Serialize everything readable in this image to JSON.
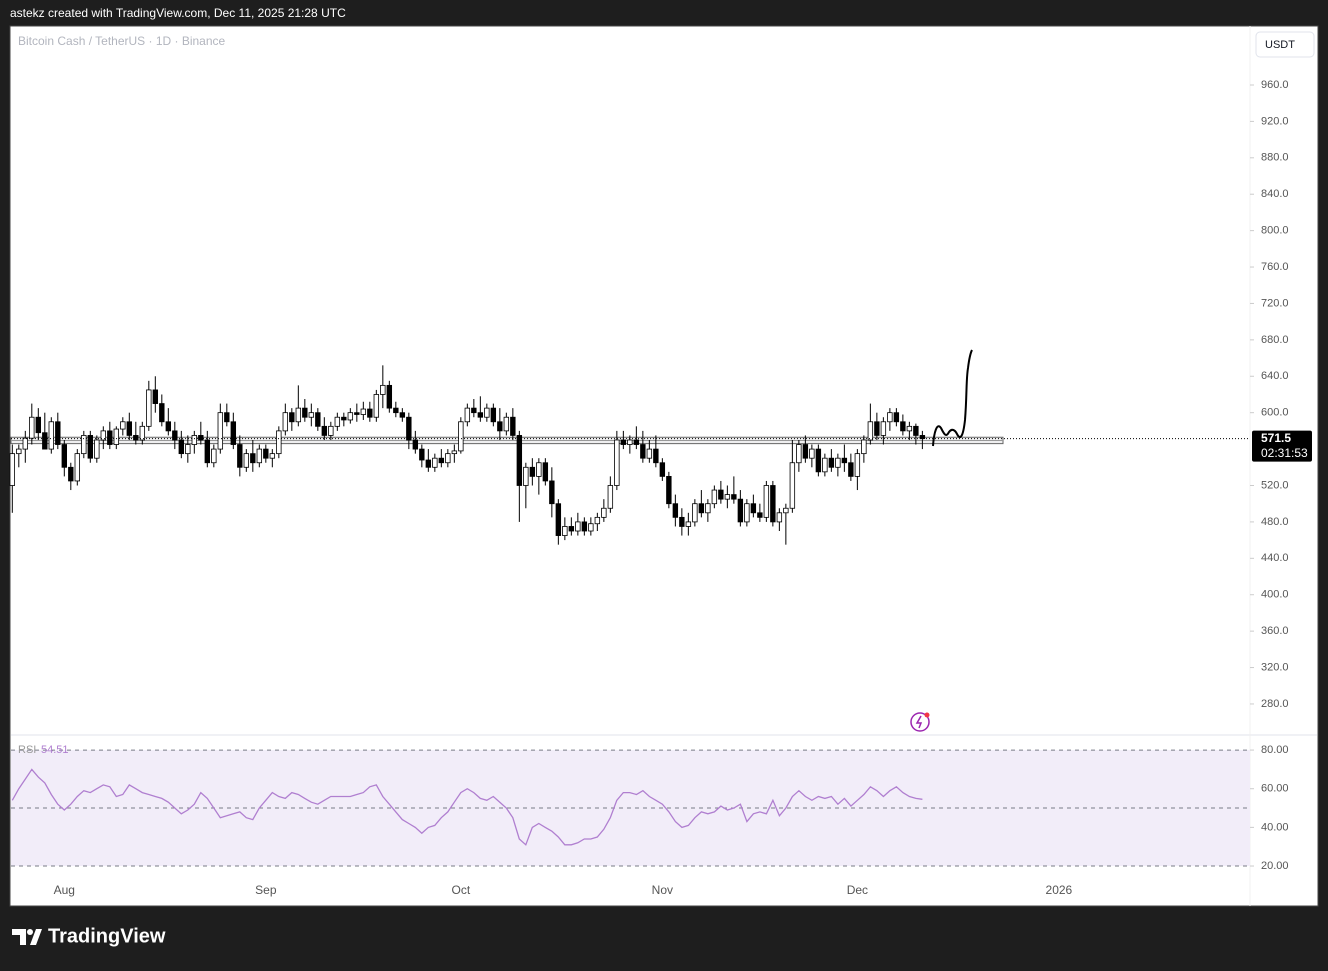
{
  "header": "astekz created with TradingView.com, Dec 11, 2025 21:28 UTC",
  "footer": {
    "brand": "TradingView"
  },
  "chart_data": {
    "type": "candlestick",
    "title": "Bitcoin Cash / TetherUS · 1D · Binance",
    "currency": "USDT",
    "countdown": "02:31:53",
    "up_color": "#ffffff",
    "down_color": "#000000",
    "wick_color": "#000000",
    "xlim": [
      -0.2,
      190.4
    ],
    "ylim": [
      245.9,
      1024.8
    ],
    "xticks": [
      {
        "value": 8,
        "label": "Aug"
      },
      {
        "value": 39,
        "label": "Sep"
      },
      {
        "value": 69,
        "label": "Oct"
      },
      {
        "value": 100,
        "label": "Nov"
      },
      {
        "value": 130,
        "label": "Dec"
      },
      {
        "value": 161,
        "label": "2026"
      }
    ],
    "yticks": [
      {
        "value": 960,
        "label": "960.0"
      },
      {
        "value": 920,
        "label": "920.0"
      },
      {
        "value": 880,
        "label": "880.0"
      },
      {
        "value": 840,
        "label": "840.0"
      },
      {
        "value": 800,
        "label": "800.0"
      },
      {
        "value": 760,
        "label": "760.0"
      },
      {
        "value": 720,
        "label": "720.0"
      },
      {
        "value": 680,
        "label": "680.0"
      },
      {
        "value": 640,
        "label": "640.0"
      },
      {
        "value": 600,
        "label": "600.0"
      },
      {
        "value": 520,
        "label": "520.0"
      },
      {
        "value": 480,
        "label": "480.0"
      },
      {
        "value": 440,
        "label": "440.0"
      },
      {
        "value": 400,
        "label": "400.0"
      },
      {
        "value": 360,
        "label": "360.0"
      },
      {
        "value": 320,
        "label": "320.0"
      },
      {
        "value": 280,
        "label": "280.0"
      }
    ],
    "support_zone": [
      566,
      573
    ],
    "ohlc": [
      [
        520,
        565,
        490,
        555
      ],
      [
        555,
        565,
        540,
        560
      ],
      [
        560,
        580,
        545,
        572
      ],
      [
        572,
        610,
        565,
        595
      ],
      [
        595,
        605,
        570,
        578
      ],
      [
        578,
        600,
        560,
        560
      ],
      [
        560,
        595,
        555,
        590
      ],
      [
        590,
        600,
        560,
        565
      ],
      [
        565,
        570,
        530,
        540
      ],
      [
        540,
        545,
        515,
        525
      ],
      [
        525,
        560,
        520,
        555
      ],
      [
        555,
        580,
        550,
        575
      ],
      [
        575,
        580,
        545,
        550
      ],
      [
        550,
        575,
        545,
        570
      ],
      [
        570,
        585,
        560,
        580
      ],
      [
        580,
        590,
        560,
        565
      ],
      [
        565,
        585,
        560,
        582
      ],
      [
        582,
        595,
        575,
        590
      ],
      [
        590,
        600,
        570,
        575
      ],
      [
        575,
        590,
        565,
        570
      ],
      [
        570,
        590,
        565,
        585
      ],
      [
        585,
        635,
        580,
        625
      ],
      [
        625,
        640,
        600,
        610
      ],
      [
        610,
        620,
        585,
        590
      ],
      [
        590,
        605,
        575,
        580
      ],
      [
        580,
        590,
        560,
        570
      ],
      [
        570,
        580,
        550,
        555
      ],
      [
        555,
        575,
        545,
        565
      ],
      [
        565,
        580,
        555,
        575
      ],
      [
        575,
        590,
        565,
        570
      ],
      [
        570,
        580,
        540,
        545
      ],
      [
        545,
        565,
        540,
        560
      ],
      [
        560,
        610,
        555,
        600
      ],
      [
        600,
        610,
        585,
        590
      ],
      [
        590,
        600,
        560,
        565
      ],
      [
        565,
        575,
        530,
        540
      ],
      [
        540,
        560,
        535,
        555
      ],
      [
        555,
        570,
        535,
        545
      ],
      [
        545,
        565,
        540,
        560
      ],
      [
        560,
        565,
        545,
        550
      ],
      [
        550,
        560,
        540,
        555
      ],
      [
        555,
        585,
        550,
        580
      ],
      [
        580,
        610,
        575,
        600
      ],
      [
        600,
        605,
        580,
        590
      ],
      [
        590,
        630,
        585,
        605
      ],
      [
        605,
        615,
        590,
        595
      ],
      [
        595,
        610,
        585,
        600
      ],
      [
        600,
        605,
        580,
        585
      ],
      [
        585,
        595,
        570,
        575
      ],
      [
        575,
        590,
        570,
        585
      ],
      [
        585,
        600,
        580,
        595
      ],
      [
        595,
        600,
        585,
        592
      ],
      [
        592,
        605,
        588,
        600
      ],
      [
        600,
        610,
        590,
        598
      ],
      [
        598,
        612,
        592,
        604
      ],
      [
        604,
        612,
        590,
        595
      ],
      [
        595,
        625,
        590,
        620
      ],
      [
        620,
        652,
        605,
        630
      ],
      [
        630,
        635,
        600,
        605
      ],
      [
        605,
        612,
        595,
        600
      ],
      [
        600,
        605,
        590,
        595
      ],
      [
        595,
        600,
        560,
        570
      ],
      [
        570,
        580,
        555,
        560
      ],
      [
        560,
        565,
        540,
        548
      ],
      [
        548,
        560,
        535,
        540
      ],
      [
        540,
        555,
        535,
        550
      ],
      [
        550,
        560,
        540,
        545
      ],
      [
        545,
        560,
        540,
        555
      ],
      [
        555,
        565,
        545,
        558
      ],
      [
        558,
        595,
        555,
        590
      ],
      [
        590,
        610,
        585,
        605
      ],
      [
        605,
        615,
        595,
        600
      ],
      [
        600,
        618,
        590,
        595
      ],
      [
        595,
        610,
        590,
        605
      ],
      [
        605,
        610,
        585,
        590
      ],
      [
        590,
        605,
        570,
        580
      ],
      [
        580,
        600,
        575,
        595
      ],
      [
        595,
        605,
        570,
        575
      ],
      [
        575,
        580,
        480,
        520
      ],
      [
        520,
        545,
        495,
        540
      ],
      [
        540,
        550,
        520,
        530
      ],
      [
        530,
        550,
        510,
        545
      ],
      [
        545,
        550,
        520,
        525
      ],
      [
        525,
        540,
        485,
        500
      ],
      [
        500,
        505,
        455,
        465
      ],
      [
        465,
        485,
        460,
        475
      ],
      [
        475,
        485,
        465,
        470
      ],
      [
        470,
        490,
        465,
        480
      ],
      [
        480,
        485,
        465,
        470
      ],
      [
        470,
        485,
        465,
        478
      ],
      [
        478,
        490,
        470,
        485
      ],
      [
        485,
        505,
        480,
        495
      ],
      [
        495,
        530,
        490,
        520
      ],
      [
        520,
        580,
        515,
        570
      ],
      [
        570,
        580,
        560,
        565
      ],
      [
        565,
        575,
        555,
        570
      ],
      [
        570,
        585,
        560,
        565
      ],
      [
        565,
        580,
        545,
        550
      ],
      [
        550,
        570,
        545,
        560
      ],
      [
        560,
        575,
        540,
        545
      ],
      [
        545,
        550,
        525,
        530
      ],
      [
        530,
        535,
        495,
        500
      ],
      [
        500,
        510,
        475,
        485
      ],
      [
        485,
        495,
        465,
        475
      ],
      [
        475,
        490,
        465,
        480
      ],
      [
        480,
        505,
        475,
        500
      ],
      [
        500,
        515,
        485,
        490
      ],
      [
        490,
        505,
        480,
        500
      ],
      [
        500,
        520,
        495,
        515
      ],
      [
        515,
        525,
        500,
        505
      ],
      [
        505,
        520,
        495,
        510
      ],
      [
        510,
        530,
        500,
        505
      ],
      [
        505,
        515,
        475,
        480
      ],
      [
        480,
        505,
        475,
        500
      ],
      [
        500,
        510,
        485,
        490
      ],
      [
        490,
        500,
        480,
        485
      ],
      [
        485,
        525,
        480,
        520
      ],
      [
        520,
        525,
        475,
        480
      ],
      [
        480,
        495,
        470,
        490
      ],
      [
        490,
        500,
        455,
        495
      ],
      [
        495,
        570,
        490,
        545
      ],
      [
        545,
        570,
        535,
        565
      ],
      [
        565,
        575,
        545,
        550
      ],
      [
        550,
        565,
        540,
        560
      ],
      [
        560,
        565,
        530,
        535
      ],
      [
        535,
        555,
        530,
        550
      ],
      [
        550,
        560,
        535,
        540
      ],
      [
        540,
        555,
        530,
        550
      ],
      [
        550,
        565,
        535,
        545
      ],
      [
        545,
        555,
        525,
        530
      ],
      [
        530,
        560,
        515,
        555
      ],
      [
        555,
        575,
        545,
        570
      ],
      [
        570,
        610,
        565,
        590
      ],
      [
        590,
        600,
        570,
        575
      ],
      [
        575,
        595,
        565,
        590
      ],
      [
        590,
        605,
        580,
        600
      ],
      [
        600,
        605,
        585,
        590
      ],
      [
        590,
        598,
        575,
        580
      ],
      [
        580,
        590,
        570,
        585
      ],
      [
        585,
        588,
        565,
        575
      ],
      [
        575,
        580,
        560,
        571.5
      ]
    ],
    "rsi": {
      "name": "RSI",
      "color": "#b07fd0",
      "ylim": [
        13.8,
        87.8
      ],
      "bands": [
        80,
        50,
        20
      ],
      "yticks": [
        {
          "value": 80,
          "label": "80.00"
        },
        {
          "value": 60,
          "label": "60.00"
        },
        {
          "value": 40,
          "label": "40.00"
        },
        {
          "value": 20,
          "label": "20.00"
        }
      ],
      "values": [
        54,
        60,
        65,
        70,
        66,
        63,
        57,
        52,
        49,
        52,
        56,
        59,
        58,
        60,
        62,
        61,
        56,
        57,
        62,
        60,
        58,
        57,
        56,
        55,
        53,
        50,
        47,
        49,
        52,
        58,
        55,
        50,
        45,
        46,
        47,
        48,
        45,
        44,
        50,
        54,
        58,
        56,
        55,
        58,
        57,
        55,
        53,
        52,
        54,
        56,
        56,
        56,
        56,
        57,
        58,
        61,
        62,
        56,
        52,
        48,
        44,
        42,
        40,
        37,
        40,
        41,
        45,
        48,
        53,
        58,
        60,
        58,
        55,
        54,
        56,
        53,
        50,
        45,
        34,
        31,
        40,
        42,
        40,
        38,
        35,
        31,
        31,
        32,
        34,
        34,
        35,
        39,
        45,
        54,
        58,
        58,
        57,
        59,
        56,
        54,
        52,
        48,
        43,
        40,
        41,
        45,
        48,
        47,
        48,
        51,
        49,
        50,
        52,
        43,
        47,
        48,
        47,
        54,
        46,
        50,
        56,
        59,
        56,
        54,
        56,
        55,
        56,
        52,
        55,
        51,
        54,
        57,
        61,
        59,
        56,
        59,
        61,
        58,
        56,
        55,
        54.51
      ]
    }
  }
}
